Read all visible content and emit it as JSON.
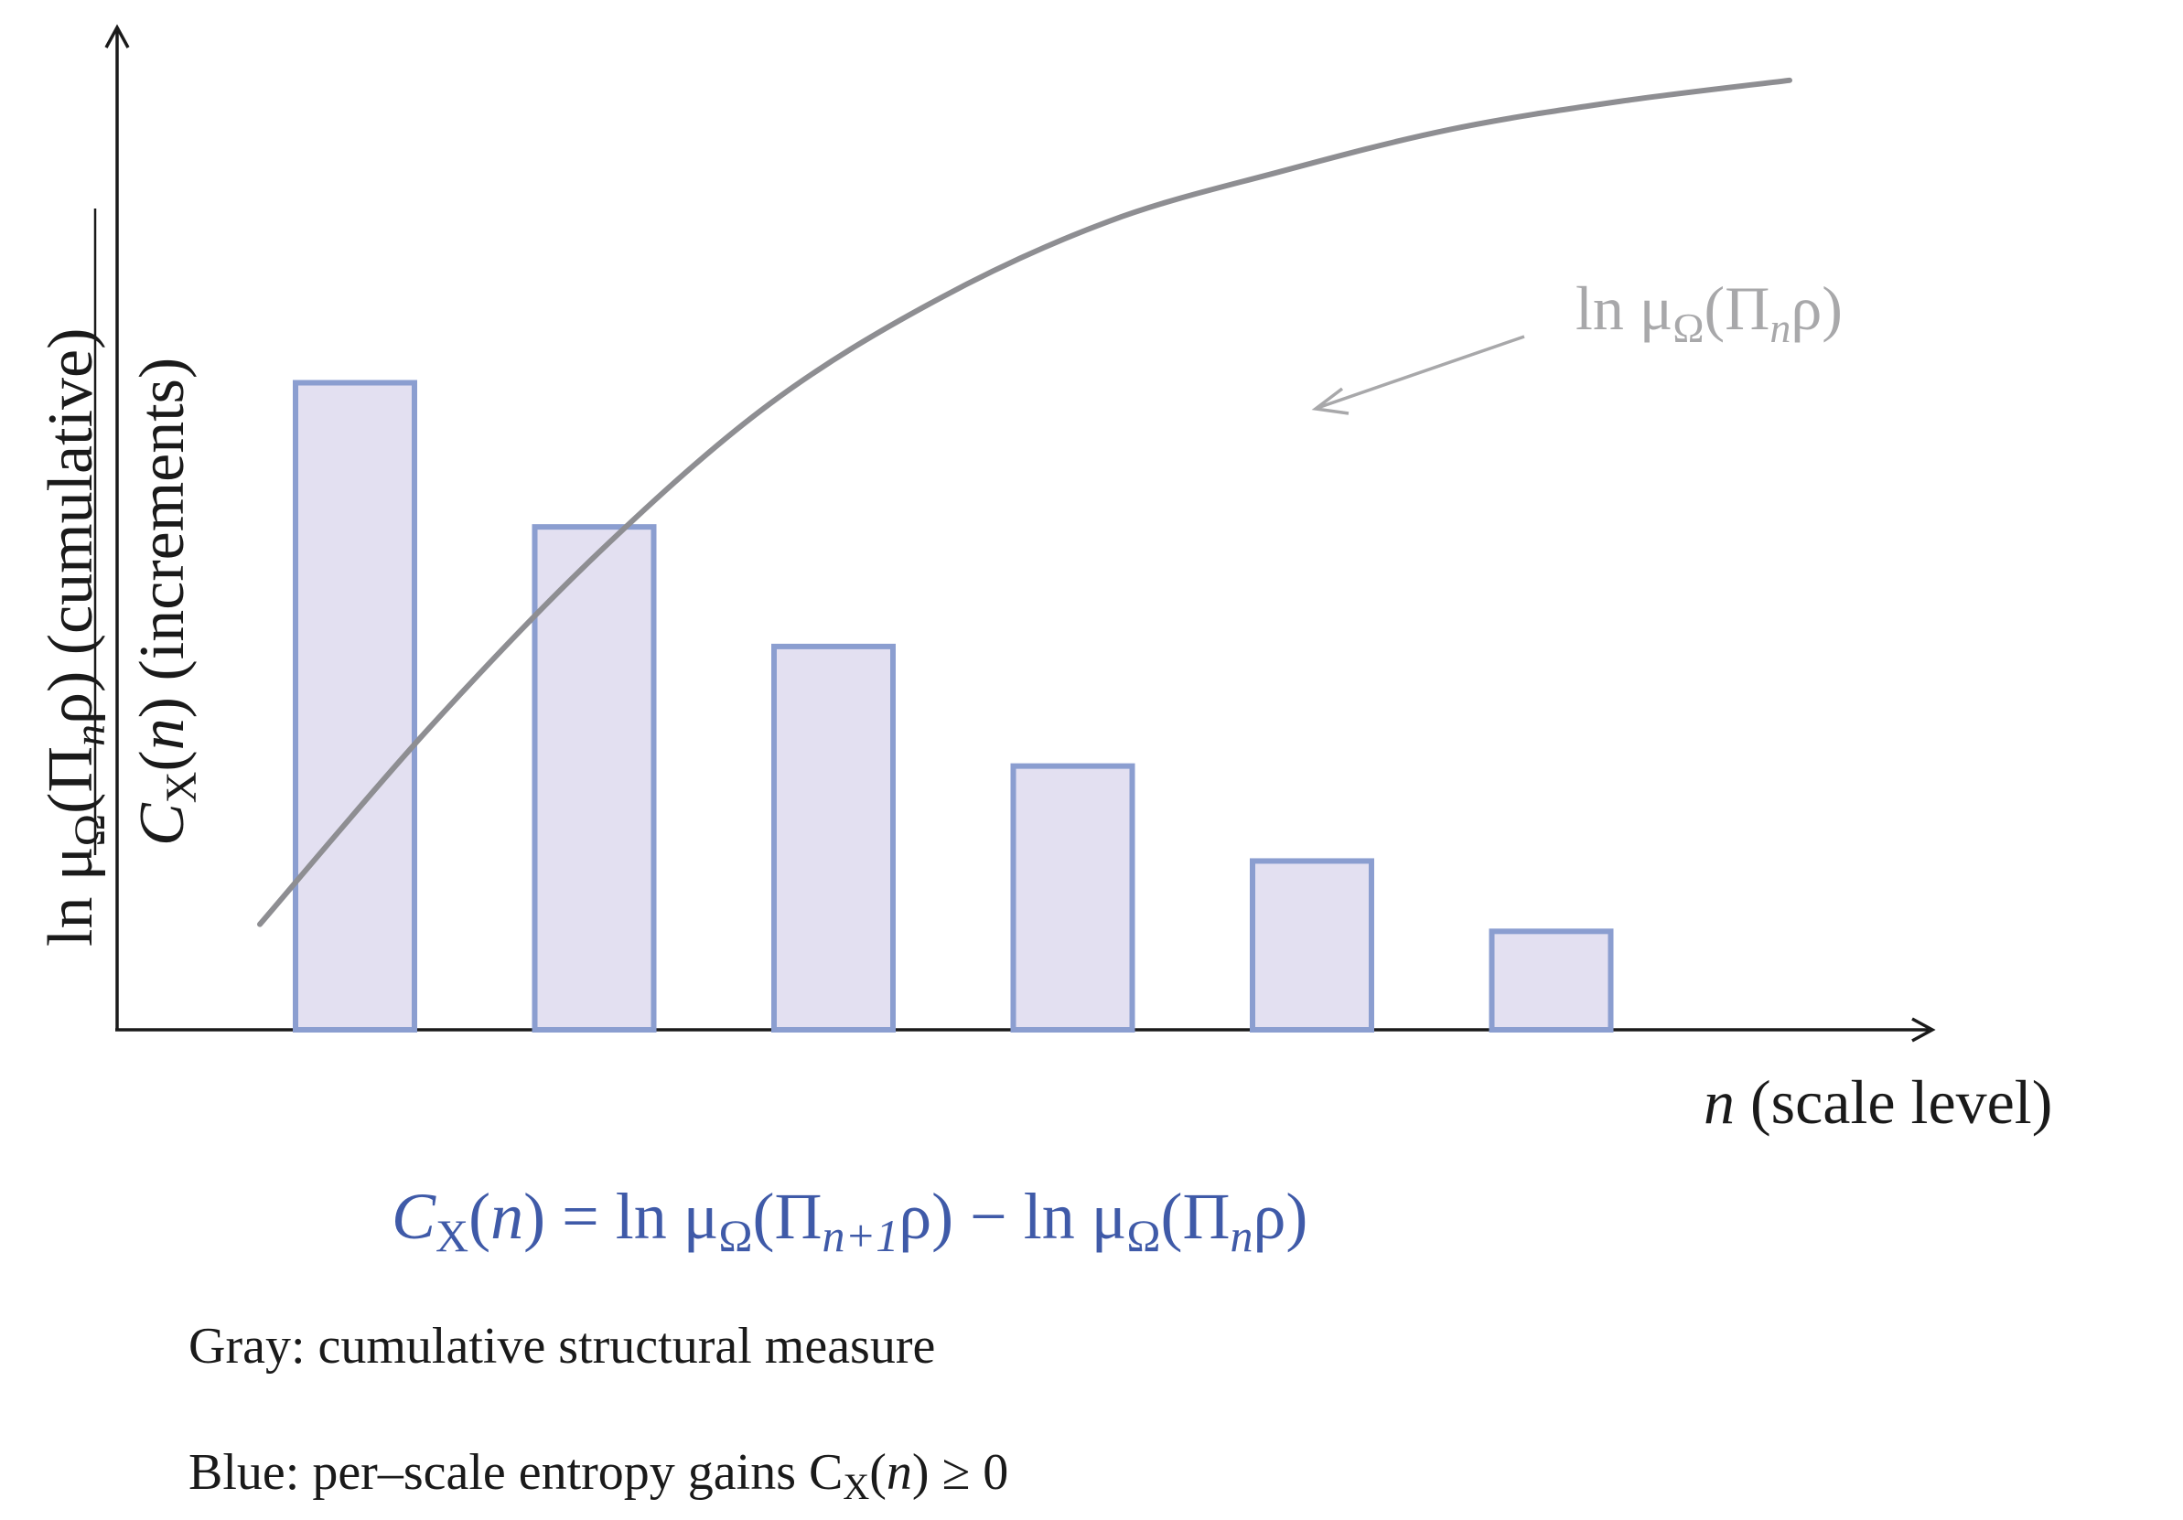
{
  "figure": {
    "y_axis_label_cumulative": {
      "main": "ln μ",
      "sub_omega": "Ω",
      "paren_open": "(Π",
      "sub_n": "n",
      "rest": "ρ) (cumulative)"
    },
    "y_axis_label_increments": {
      "main": "C",
      "sub_x": "X",
      "paren_open": "(",
      "n": "n",
      "rest": ") (increments)"
    },
    "x_axis_label": {
      "n": "n",
      "rest": " (scale level)"
    },
    "curve_label": {
      "main": "ln μ",
      "sub_omega": "Ω",
      "paren_open": "(Π",
      "sub_n": "n",
      "rest": "ρ)"
    },
    "equation": {
      "lhs_c": "C",
      "lhs_sub_x": "X",
      "lhs_paren_open": "(",
      "lhs_n": "n",
      "lhs_close_eq": ") = ln μ",
      "t1_sub_omega": "Ω",
      "t1_paren": "(Π",
      "t1_sub": "n+1",
      "t1_rest": "ρ) − ln μ",
      "t2_sub_omega": "Ω",
      "t2_paren": "(Π",
      "t2_sub": "n",
      "t2_rest": "ρ)"
    },
    "caption_gray": "Gray: cumulative structural measure",
    "caption_blue": {
      "text": "Blue: per–scale entropy gains C",
      "sub_x": "X",
      "paren_open": "(",
      "n": "n",
      "rest": ") ≥ 0"
    }
  },
  "colors": {
    "bar_fill": "#e3e0f1",
    "bar_stroke": "#8b9ed0",
    "curve": "#8e8e92",
    "curve_label": "#a8a8aa",
    "equation": "#3f5aa8",
    "axis": "#1a1a1a"
  },
  "chart_data": {
    "type": "bar",
    "bars": {
      "values": [
        0.92,
        0.715,
        0.545,
        0.375,
        0.24,
        0.14
      ]
    },
    "curve": {
      "type": "line",
      "x": [
        0.0,
        0.7,
        1.4,
        2.1,
        2.8,
        3.5,
        4.2,
        4.9,
        5.6,
        6.3
      ],
      "y": [
        0.15,
        0.43,
        0.68,
        0.89,
        1.04,
        1.15,
        1.22,
        1.28,
        1.32,
        1.35
      ]
    },
    "ylim": [
      0,
      1.42
    ],
    "grid": false
  }
}
